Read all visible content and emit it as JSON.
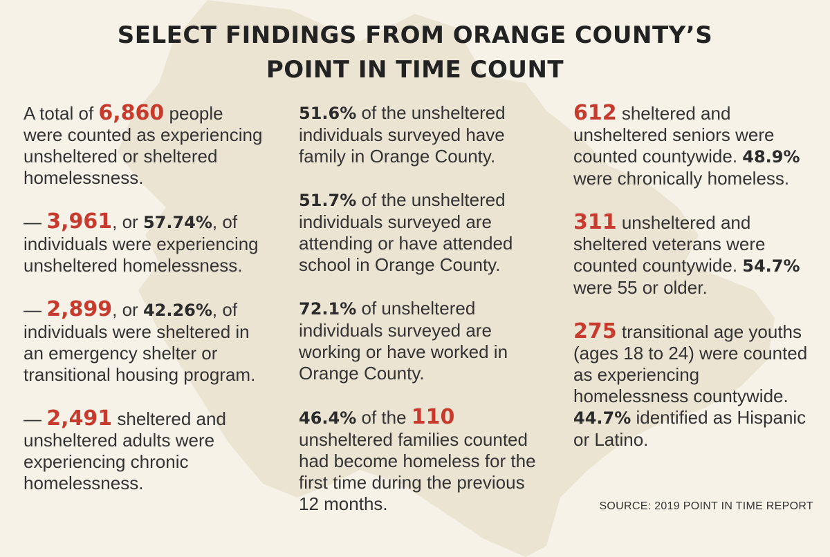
{
  "title_line_1": "SELECT FINDINGS FROM ORANGE COUNTY’S",
  "title_line_2": "POINT IN TIME COUNT",
  "colors": {
    "background": "#f6f2e8",
    "map": "#ece4d3",
    "accent_red": "#c63b2e",
    "text": "#2b2b2b"
  },
  "columns": [
    [
      [
        {
          "t": "A total of "
        },
        {
          "t": "6,860",
          "s": "red"
        },
        {
          "t": " people were counted as experiencing unsheltered or sheltered homelessness."
        }
      ],
      [
        {
          "t": "— "
        },
        {
          "t": "3,961",
          "s": "red"
        },
        {
          "t": ", or "
        },
        {
          "t": "57.74%",
          "s": "dark"
        },
        {
          "t": ", of individuals were experiencing unsheltered homelessness."
        }
      ],
      [
        {
          "t": "— "
        },
        {
          "t": "2,899",
          "s": "red"
        },
        {
          "t": ", or "
        },
        {
          "t": "42.26%",
          "s": "dark"
        },
        {
          "t": ", of individuals were sheltered in an emergency shelter or transitional housing program."
        }
      ],
      [
        {
          "t": "— "
        },
        {
          "t": "2,491",
          "s": "red"
        },
        {
          "t": " sheltered and unsheltered adults were experiencing chronic homelessness."
        }
      ]
    ],
    [
      [
        {
          "t": "51.6%",
          "s": "dark"
        },
        {
          "t": " of the unsheltered individuals surveyed have family in Orange County."
        }
      ],
      [
        {
          "t": "51.7%",
          "s": "dark"
        },
        {
          "t": " of the unsheltered individuals surveyed are attending or have attended school in Orange County."
        }
      ],
      [
        {
          "t": "72.1%",
          "s": "dark"
        },
        {
          "t": " of unsheltered individuals surveyed are working or have worked in Orange County."
        }
      ],
      [
        {
          "t": "46.4%",
          "s": "dark"
        },
        {
          "t": " of the "
        },
        {
          "t": "110",
          "s": "red"
        },
        {
          "t": " unsheltered families counted had become homeless for the first time during the previous 12 months."
        }
      ]
    ],
    [
      [
        {
          "t": "612",
          "s": "red"
        },
        {
          "t": " sheltered and unsheltered seniors were counted countywide. "
        },
        {
          "t": "48.9%",
          "s": "dark"
        },
        {
          "t": " were chronically homeless."
        }
      ],
      [
        {
          "t": "311",
          "s": "red"
        },
        {
          "t": " unsheltered and sheltered veterans were counted countywide. "
        },
        {
          "t": "54.7%",
          "s": "dark"
        },
        {
          "t": " were 55 or older."
        }
      ],
      [
        {
          "t": "275",
          "s": "red"
        },
        {
          "t": " transitional age youths (ages 18 to 24) were counted as experiencing homelessness countywide. "
        },
        {
          "t": "44.7%",
          "s": "dark"
        },
        {
          "t": " identified as Hispanic or Latino."
        }
      ]
    ]
  ],
  "source": "SOURCE: 2019 POINT IN TIME REPORT"
}
